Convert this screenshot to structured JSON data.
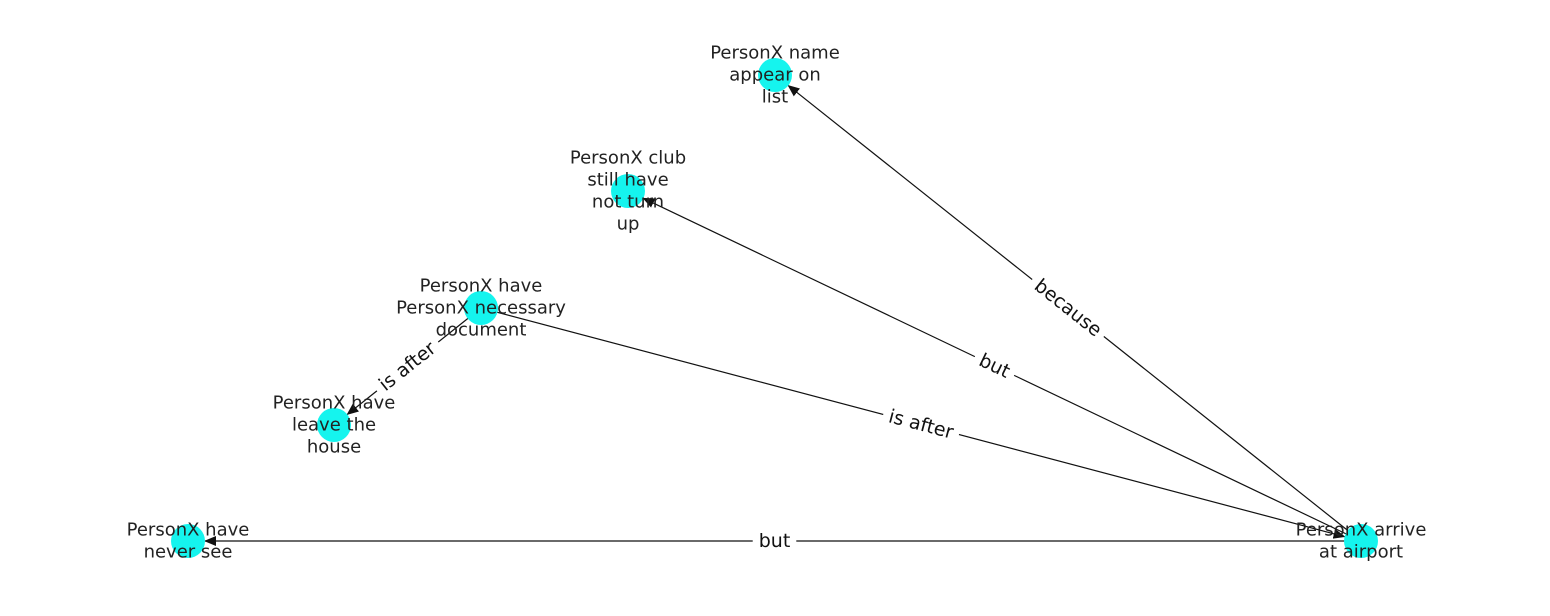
{
  "graph": {
    "node_color": "#15f4ee",
    "edge_color": "#111111",
    "nodes": [
      {
        "id": "n1",
        "lines": [
          "PersonX name",
          "appear on",
          "list"
        ]
      },
      {
        "id": "n2",
        "lines": [
          "PersonX club",
          "still have",
          "not turn",
          "up"
        ]
      },
      {
        "id": "n3",
        "lines": [
          "PersonX have",
          "PersonX necessary",
          "document"
        ]
      },
      {
        "id": "n4",
        "lines": [
          "PersonX have",
          "leave the",
          "house"
        ]
      },
      {
        "id": "n5",
        "lines": [
          "PersonX have",
          "never see"
        ]
      },
      {
        "id": "n6",
        "lines": [
          "PersonX arrive",
          "at airport"
        ]
      }
    ],
    "edges": [
      {
        "from": "n6",
        "to": "n1",
        "label": "because"
      },
      {
        "from": "n6",
        "to": "n2",
        "label": "but"
      },
      {
        "from": "n3",
        "to": "n6",
        "label": "is after"
      },
      {
        "from": "n3",
        "to": "n4",
        "label": "is after"
      },
      {
        "from": "n6",
        "to": "n5",
        "label": "but"
      }
    ]
  }
}
